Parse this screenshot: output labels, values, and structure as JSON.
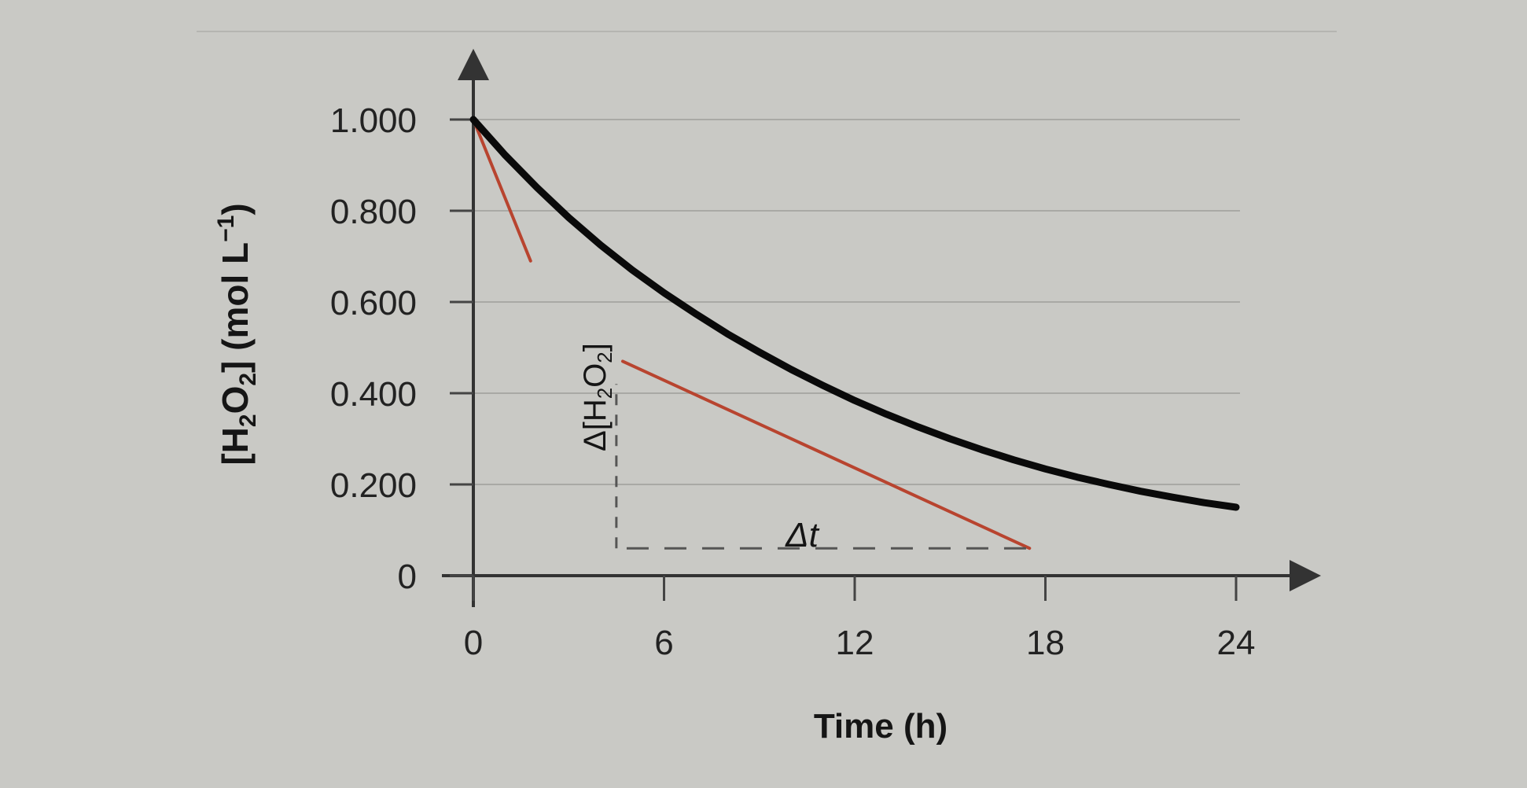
{
  "chart_data": {
    "type": "line",
    "title": "",
    "xlabel": "Time (h)",
    "ylabel_prefix": "[H",
    "ylabel_sub2": "2",
    "ylabel_o": "O",
    "ylabel_mid": "] (mol L",
    "ylabel_sup": "−1",
    "ylabel_end": ")",
    "xlim": [
      0,
      24
    ],
    "ylim": [
      0,
      1.0
    ],
    "x_ticks": [
      0,
      6,
      12,
      18,
      24
    ],
    "x_tick_labels": [
      "0",
      "6",
      "12",
      "18",
      "24"
    ],
    "y_ticks": [
      0,
      0.2,
      0.4,
      0.6,
      0.8,
      1.0
    ],
    "y_tick_labels": [
      "0",
      "0.200",
      "0.400",
      "0.600",
      "0.800",
      "1.000"
    ],
    "grid": true,
    "series": [
      {
        "color": "#0a0a0a",
        "x": [
          0,
          1,
          2,
          3,
          4,
          5,
          6,
          7,
          8,
          9,
          10,
          11,
          12,
          13,
          14,
          15,
          16,
          17,
          18,
          19,
          20,
          21,
          22,
          23,
          24
        ],
        "y": [
          1.0,
          0.922,
          0.851,
          0.785,
          0.725,
          0.67,
          0.62,
          0.574,
          0.53,
          0.49,
          0.452,
          0.417,
          0.384,
          0.354,
          0.326,
          0.3,
          0.276,
          0.254,
          0.234,
          0.216,
          0.2,
          0.185,
          0.172,
          0.16,
          0.15
        ]
      }
    ],
    "tangent_lines": [
      {
        "color": "#b8442f",
        "x": [
          0,
          1.8
        ],
        "y": [
          1.0,
          0.69
        ]
      },
      {
        "color": "#b8442f",
        "x": [
          4.7,
          17.5
        ],
        "y": [
          0.47,
          0.06
        ]
      }
    ],
    "annotations": {
      "delta_conc_prefix": "Δ[H",
      "delta_conc_sub2": "2",
      "delta_conc_o": "O",
      "delta_conc_sub2b": "2",
      "delta_conc_end": "]",
      "delta_t": "Δt",
      "dashed_h": {
        "x": [
          4.7,
          17.5
        ],
        "y": 0.06
      },
      "dashed_v": {
        "x": 4.5,
        "y": [
          0.06,
          0.42
        ]
      }
    }
  }
}
